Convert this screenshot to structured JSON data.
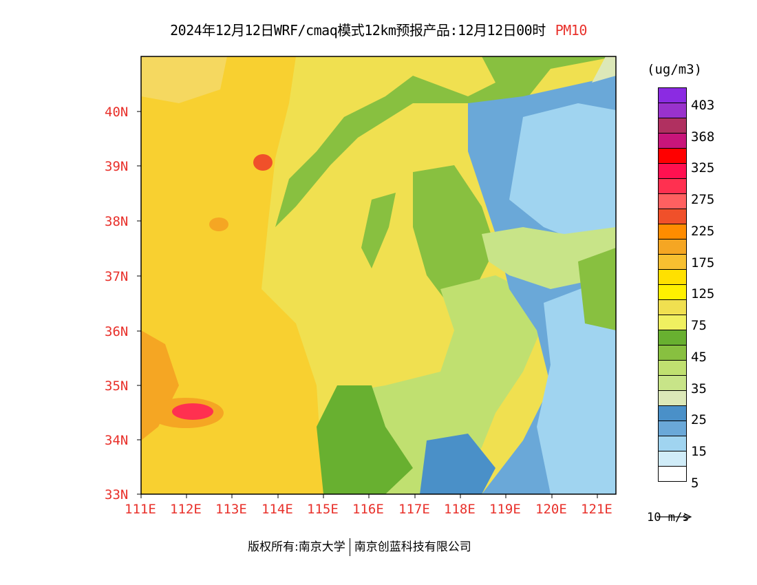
{
  "title": {
    "main": "2024年12月12日WRF/cmaq模式12km预报产品:12月12日00时",
    "variable": "PM10"
  },
  "map": {
    "lat_ticks": [
      "40N",
      "39N",
      "38N",
      "37N",
      "36N",
      "35N",
      "34N",
      "33N"
    ],
    "lon_ticks": [
      "111E",
      "112E",
      "113E",
      "114E",
      "115E",
      "116E",
      "117E",
      "118E",
      "119E",
      "120E",
      "121E"
    ],
    "lat_range": [
      33,
      41
    ],
    "lon_range": [
      111,
      121.4
    ]
  },
  "legend": {
    "units": "(ug/m3)",
    "colors": [
      "#8b2be2",
      "#9932cc",
      "#b03060",
      "#c8157a",
      "#ff0000",
      "#ff1050",
      "#ff3050",
      "#ff6060",
      "#f0502a",
      "#ff8c00",
      "#f5a623",
      "#f8c030",
      "#ffe000",
      "#fff000",
      "#f0e050",
      "#f0f060",
      "#68b030",
      "#88c040",
      "#c0e070",
      "#c8e488",
      "#dce8b8",
      "#4a90c8",
      "#6aa8d8",
      "#a0d4f0",
      "#d0ecf8",
      "#ffffff"
    ],
    "labels": [
      "403",
      "368",
      "325",
      "275",
      "225",
      "175",
      "125",
      "75",
      "45",
      "35",
      "25",
      "15",
      "5"
    ]
  },
  "reference_vector": {
    "label": "10 m/s"
  },
  "copyright": {
    "left": "版权所有:南京大学",
    "right": "南京创蓝科技有限公司"
  }
}
